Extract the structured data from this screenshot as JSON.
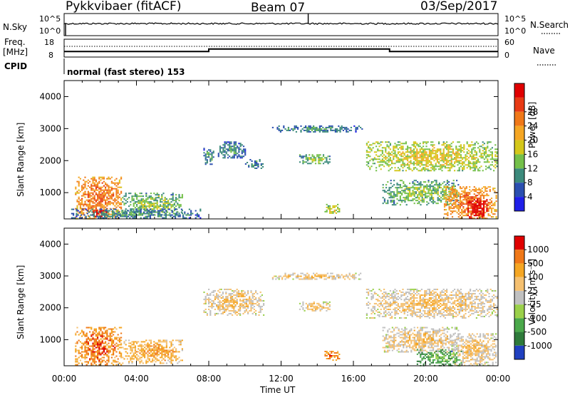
{
  "header": {
    "radar": "Pykkvibaer (fitACF)",
    "beam": "Beam 07",
    "date": "03/Sep/2017"
  },
  "noise_panel": {
    "left_label": "N.Sky",
    "right_label": "N.Search",
    "left_ticks": [
      "10^5",
      "10^0"
    ],
    "right_ticks": [
      "10^5",
      "10^0"
    ]
  },
  "freq_panel": {
    "left_label_line1": "Freq.",
    "left_label_line2": "[MHz]",
    "right_label": "Nave",
    "left_ticks": [
      "18",
      "8"
    ],
    "right_ticks": [
      "60",
      "0"
    ],
    "freq_steps": [
      {
        "t_start": 0.0,
        "t_end": 8.0,
        "freq": 10.0
      },
      {
        "t_start": 8.0,
        "t_end": 18.0,
        "freq": 11.8
      },
      {
        "t_start": 18.0,
        "t_end": 24.0,
        "freq": 10.0
      }
    ]
  },
  "cpid": {
    "label": "CPID",
    "text": "normal (fast stereo) 153"
  },
  "chart_data": [
    {
      "type": "heatmap",
      "name": "power",
      "ylabel": "Slant Range [km]",
      "yticks": [
        1000,
        2000,
        3000,
        4000
      ],
      "ylim": [
        180,
        4500
      ],
      "xlim": [
        0,
        24
      ],
      "colorbar": {
        "label": "Power [dB]",
        "ticks": [
          "4",
          "8",
          "12",
          "16",
          "20",
          "24",
          "28"
        ],
        "colors": [
          "#1f1fe8",
          "#2b4fb0",
          "#3c8a7c",
          "#74c04a",
          "#d4c71a",
          "#f5a623",
          "#f07818",
          "#e83a14",
          "#e00000"
        ]
      },
      "echo_regions": [
        {
          "t0": 0.6,
          "t1": 3.2,
          "r0": 200,
          "r1": 1500,
          "level": 5
        },
        {
          "t0": 1.6,
          "t1": 2.3,
          "r0": 250,
          "r1": 500,
          "level": 8
        },
        {
          "t0": 3.2,
          "t1": 6.5,
          "r0": 300,
          "r1": 1000,
          "level": 2
        },
        {
          "t0": 0.3,
          "t1": 7.5,
          "r0": 200,
          "r1": 500,
          "level": 1
        },
        {
          "t0": 7.7,
          "t1": 8.3,
          "r0": 1900,
          "r1": 2400,
          "level": 1
        },
        {
          "t0": 8.5,
          "t1": 10.0,
          "r0": 2100,
          "r1": 2600,
          "level": 1
        },
        {
          "t0": 10.0,
          "t1": 11.0,
          "r0": 1750,
          "r1": 2050,
          "level": 1
        },
        {
          "t0": 13.0,
          "t1": 14.7,
          "r0": 1900,
          "r1": 2200,
          "level": 2
        },
        {
          "t0": 14.4,
          "t1": 15.2,
          "r0": 350,
          "r1": 650,
          "level": 3
        },
        {
          "t0": 16.7,
          "t1": 23.9,
          "r0": 1700,
          "r1": 2600,
          "level": 3
        },
        {
          "t0": 17.6,
          "t1": 21.8,
          "r0": 600,
          "r1": 1400,
          "level": 2
        },
        {
          "t0": 21.0,
          "t1": 23.9,
          "r0": 200,
          "r1": 1200,
          "level": 5
        },
        {
          "t0": 22.3,
          "t1": 23.4,
          "r0": 200,
          "r1": 800,
          "level": 8
        },
        {
          "t0": 11.5,
          "t1": 16.5,
          "r0": 2900,
          "r1": 3100,
          "level": 1
        }
      ]
    },
    {
      "type": "heatmap",
      "name": "velocity",
      "xlabel": "Time UT",
      "ylabel": "Slant Range [km]",
      "yticks": [
        1000,
        2000,
        3000,
        4000
      ],
      "ylim": [
        180,
        4500
      ],
      "xlim": [
        0,
        24
      ],
      "xticks": [
        "00:00",
        "04:00",
        "08:00",
        "12:00",
        "16:00",
        "20:00",
        "00:00"
      ],
      "colorbar": {
        "label": "Velocity [m s⁻¹]",
        "ticks": [
          "1000",
          "500",
          "100",
          "25",
          "-25",
          "-100",
          "-500",
          "-1000"
        ],
        "colors": [
          "#2040c0",
          "#2e7a3a",
          "#4aa84a",
          "#9ad04a",
          "#c0c0c0",
          "#f5c070",
          "#f5a623",
          "#f07818",
          "#e00000"
        ]
      },
      "echo_regions": [
        {
          "t0": 0.6,
          "t1": 3.2,
          "r0": 200,
          "r1": 1400,
          "level": 6
        },
        {
          "t0": 3.2,
          "t1": 6.5,
          "r0": 250,
          "r1": 1000,
          "level": 5
        },
        {
          "t0": 7.7,
          "t1": 11.0,
          "r0": 1750,
          "r1": 2600,
          "level": 4
        },
        {
          "t0": 13.0,
          "t1": 14.7,
          "r0": 1900,
          "r1": 2200,
          "level": 4
        },
        {
          "t0": 14.4,
          "t1": 15.2,
          "r0": 350,
          "r1": 650,
          "level": 6
        },
        {
          "t0": 16.7,
          "t1": 23.9,
          "r0": 1700,
          "r1": 2600,
          "level": 4
        },
        {
          "t0": 17.6,
          "t1": 21.8,
          "r0": 600,
          "r1": 1400,
          "level": 4
        },
        {
          "t0": 19.5,
          "t1": 22.0,
          "r0": 200,
          "r1": 700,
          "level": 1
        },
        {
          "t0": 21.5,
          "t1": 23.9,
          "r0": 200,
          "r1": 1200,
          "level": 4
        },
        {
          "t0": 11.5,
          "t1": 16.5,
          "r0": 2900,
          "r1": 3100,
          "level": 4
        }
      ]
    }
  ]
}
